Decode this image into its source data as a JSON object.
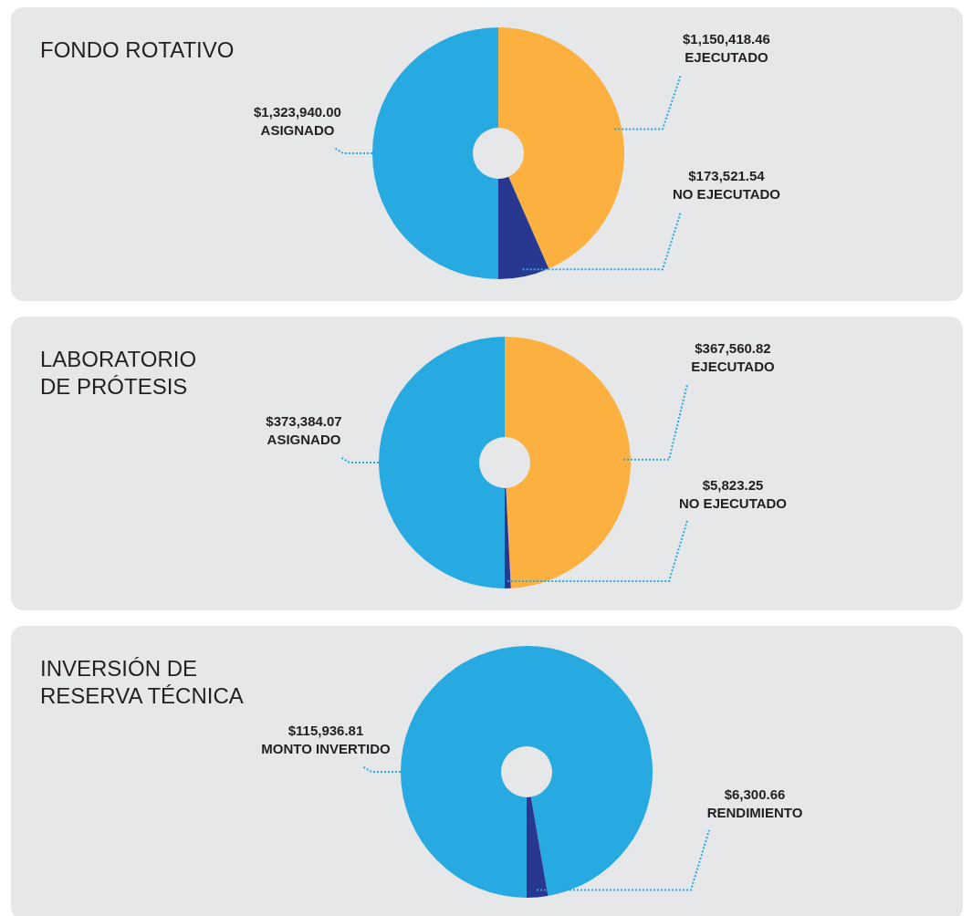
{
  "chart_data": [
    {
      "type": "donut",
      "title": "FONDO ROTATIVO",
      "categories": [
        "EJECUTADO",
        "NO EJECUTADO",
        "ASIGNADO"
      ],
      "values": [
        1150418.46,
        173521.54,
        1323940.0
      ],
      "value_labels": [
        "$1,150,418.46",
        "$173,521.54",
        "$1,323,940.00"
      ],
      "colors": [
        "#fbb040",
        "#283891",
        "#27a9e1"
      ]
    },
    {
      "type": "donut",
      "title": "LABORATORIO\nDE PRÓTESIS",
      "categories": [
        "EJECUTADO",
        "NO EJECUTADO",
        "ASIGNADO"
      ],
      "values": [
        367560.82,
        5823.25,
        373384.07
      ],
      "value_labels": [
        "$367,560.82",
        "$5,823.25",
        "$373,384.07"
      ],
      "colors": [
        "#fbb040",
        "#283891",
        "#27a9e1"
      ]
    },
    {
      "type": "donut",
      "title": "INVERSIÓN DE\nRESERVA TÉCNICA",
      "categories": [
        null,
        "RENDIMIENTO",
        "MONTO INVERTIDO"
      ],
      "values": [
        109636.15,
        6300.66,
        115936.81
      ],
      "value_labels": [
        null,
        "$6,300.66",
        "$115,936.81"
      ],
      "colors": [
        "#27a9e1",
        "#283891",
        "#27a9e1"
      ]
    }
  ]
}
